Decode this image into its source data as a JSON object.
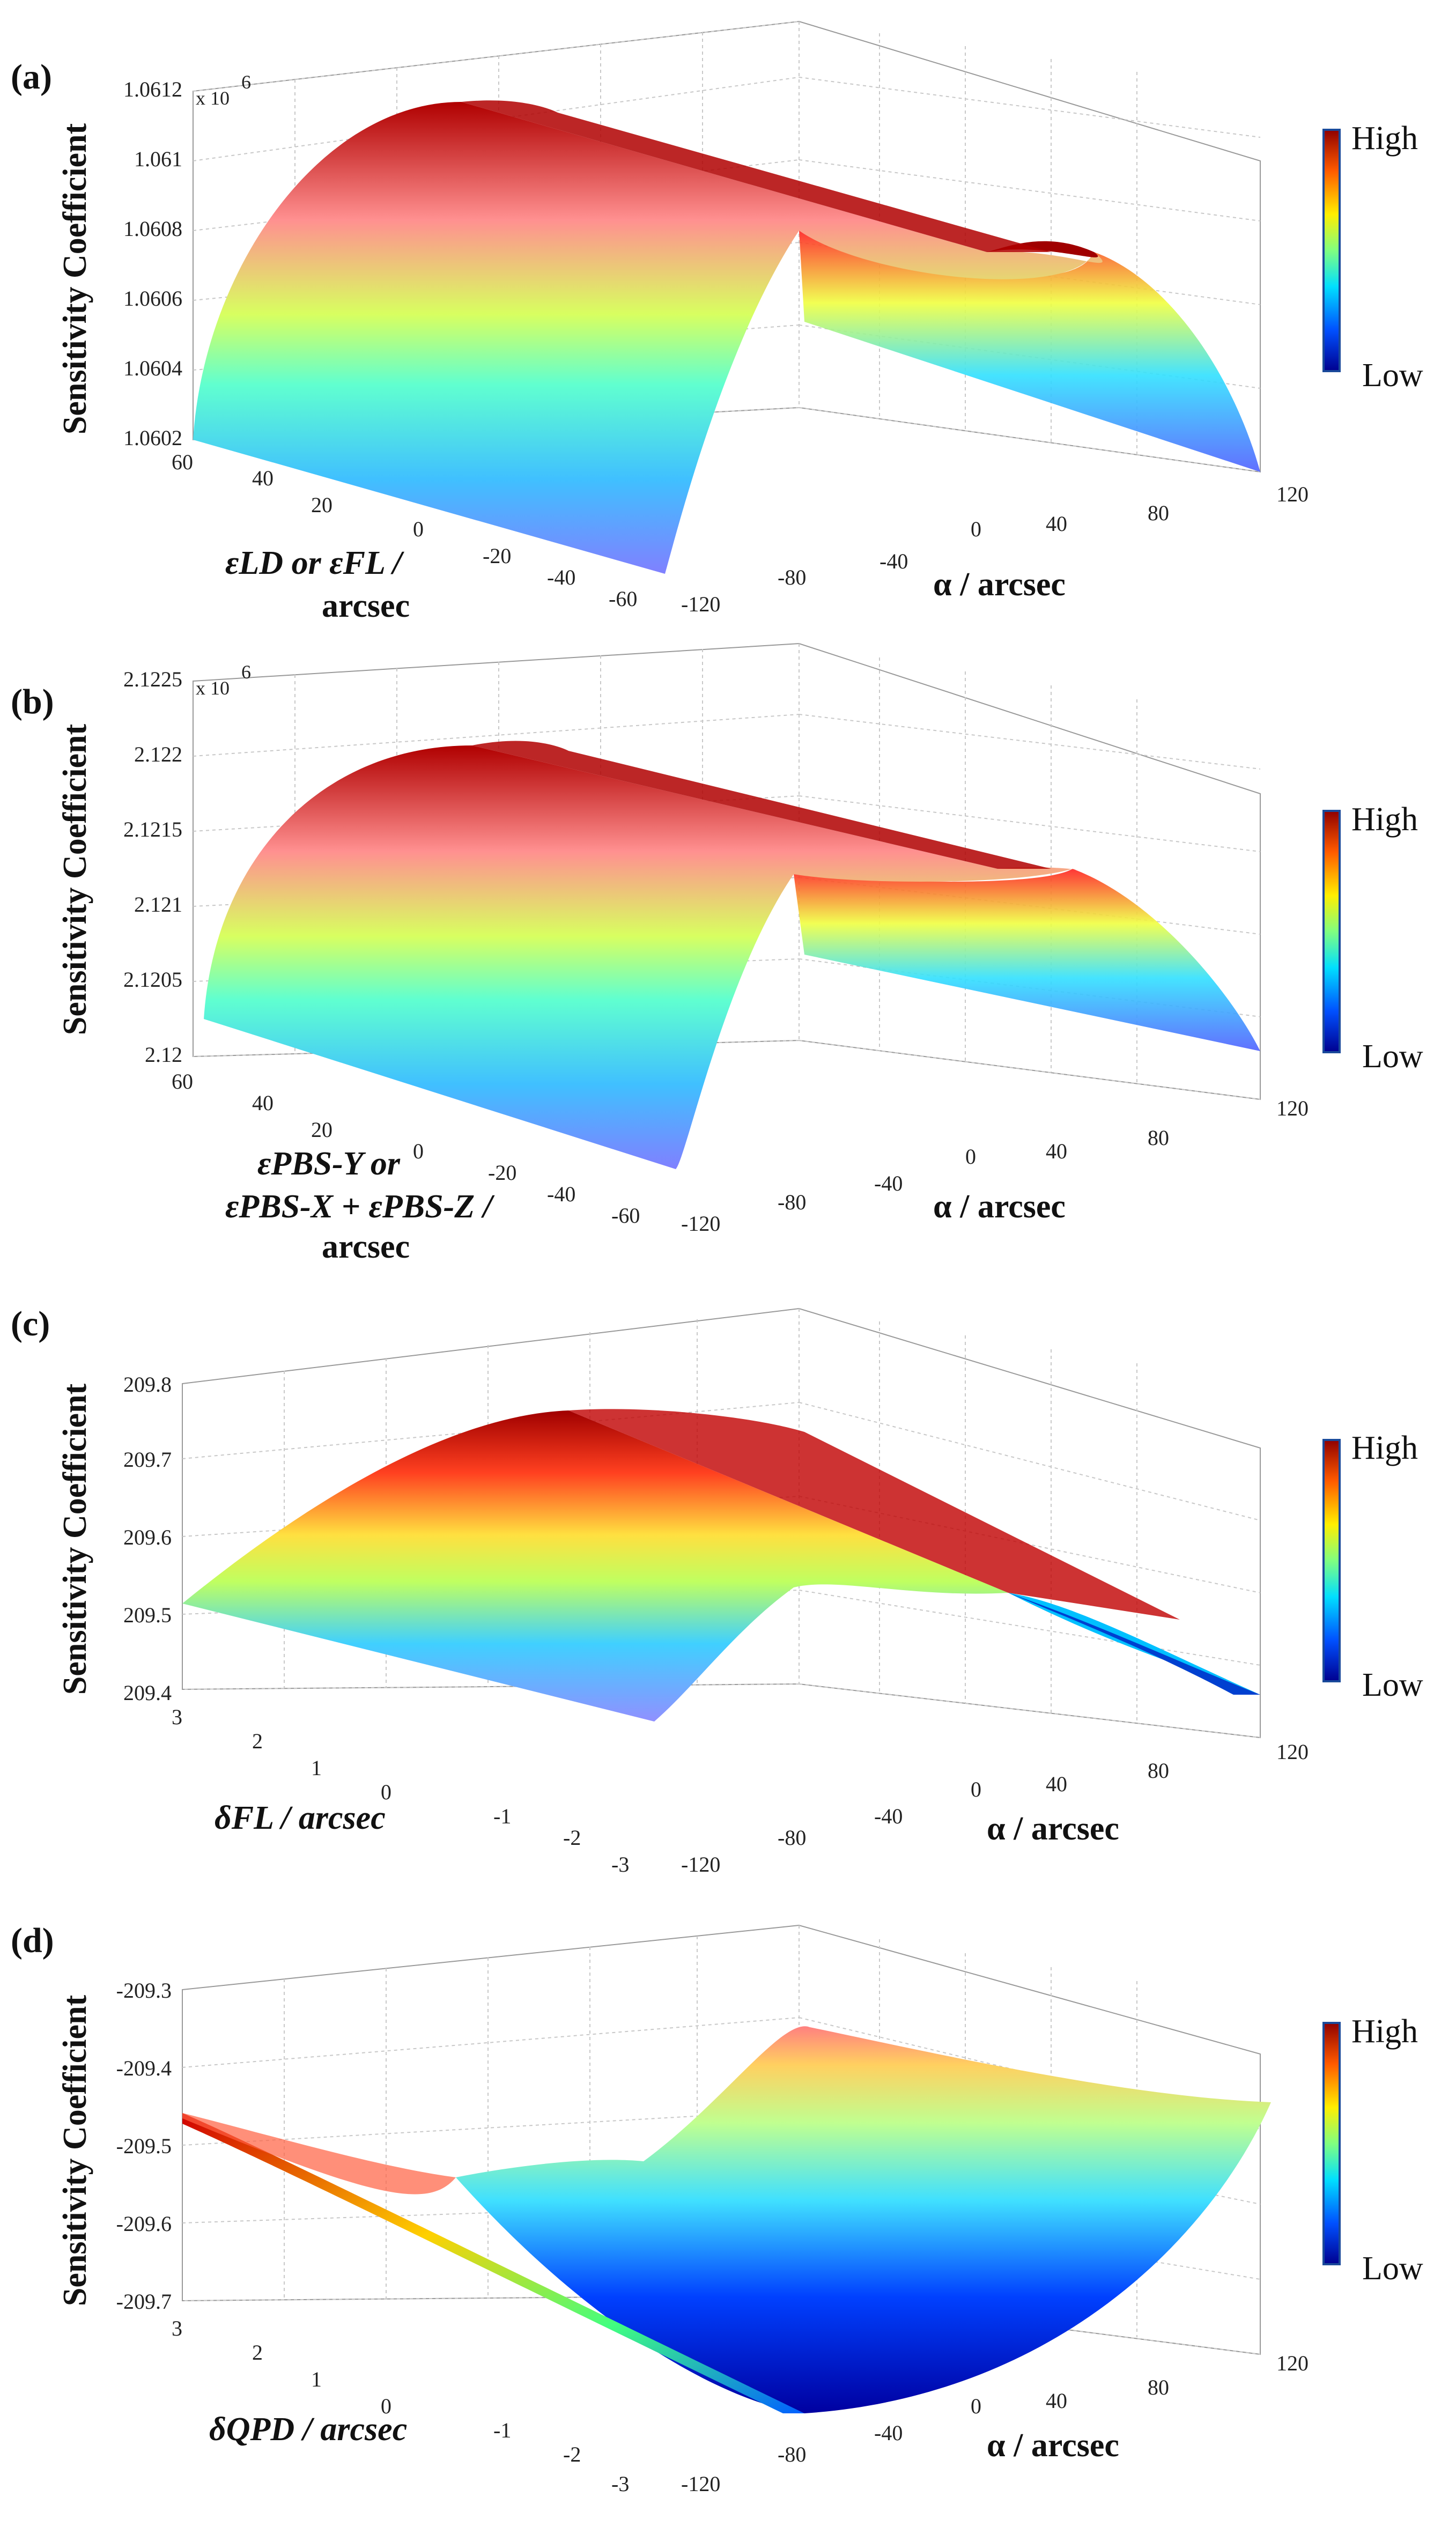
{
  "colorbar": {
    "high_label": "High",
    "low_label": "Low",
    "stops": [
      "#00008f",
      "#0050ff",
      "#00dfff",
      "#80ff80",
      "#ffef00",
      "#ff5a00",
      "#8f0000"
    ]
  },
  "chart_data": [
    {
      "type": "surface",
      "panel_label": "(a)",
      "zlabel": "Sensitivity Coefficient",
      "z_multiplier": "x 10",
      "z_multiplier_exp": "6",
      "z_ticks": [
        "1.0602",
        "1.0604",
        "1.0606",
        "1.0608",
        "1.061",
        "1.0612"
      ],
      "zlim": [
        1.0602,
        1.0612
      ],
      "y_ticks": [
        "60",
        "40",
        "20",
        "0",
        "-20",
        "-40",
        "-60"
      ],
      "ylabel_lines": [
        "εLD or εFL /",
        "arcsec"
      ],
      "x_ticks": [
        "-120",
        "-80",
        "-40",
        "0",
        "40",
        "80",
        "120"
      ],
      "xlabel": "α / arcsec",
      "shape": "concave-down in α",
      "peak_at_alpha": 0
    },
    {
      "type": "surface",
      "panel_label": "(b)",
      "zlabel": "Sensitivity Coefficient",
      "z_multiplier": "x 10",
      "z_multiplier_exp": "6",
      "z_ticks": [
        "2.12",
        "2.1205",
        "2.121",
        "2.1215",
        "2.122",
        "2.1225"
      ],
      "zlim": [
        2.12,
        2.1225
      ],
      "y_ticks": [
        "60",
        "40",
        "20",
        "0",
        "-20",
        "-40",
        "-60"
      ],
      "ylabel_lines": [
        "εPBS-Y or",
        "εPBS-X + εPBS-Z /",
        "arcsec"
      ],
      "x_ticks": [
        "-120",
        "-80",
        "-40",
        "0",
        "40",
        "80",
        "120"
      ],
      "xlabel": "α / arcsec",
      "shape": "concave-down in α",
      "peak_at_alpha": 0
    },
    {
      "type": "surface",
      "panel_label": "(c)",
      "zlabel": "Sensitivity Coefficient",
      "z_ticks": [
        "209.4",
        "209.5",
        "209.6",
        "209.7",
        "209.8"
      ],
      "zlim": [
        209.4,
        209.8
      ],
      "y_ticks": [
        "3",
        "2",
        "1",
        "0",
        "-1",
        "-2",
        "-3"
      ],
      "ylabel_lines": [
        "δFL / arcsec"
      ],
      "x_ticks": [
        "-120",
        "-80",
        "-40",
        "0",
        "40",
        "80",
        "120"
      ],
      "xlabel": "α / arcsec",
      "shape": "concave-down in α",
      "peak_at_alpha": 0
    },
    {
      "type": "surface",
      "panel_label": "(d)",
      "zlabel": "Sensitivity Coefficient",
      "z_ticks": [
        "-209.7",
        "-209.6",
        "-209.5",
        "-209.4",
        "-209.3"
      ],
      "zlim": [
        -209.7,
        -209.3
      ],
      "y_ticks": [
        "3",
        "2",
        "1",
        "0",
        "-1",
        "-2",
        "-3"
      ],
      "ylabel_lines": [
        "δQPD / arcsec"
      ],
      "x_ticks": [
        "-120",
        "-80",
        "-40",
        "0",
        "40",
        "80",
        "120"
      ],
      "xlabel": "α / arcsec",
      "shape": "concave-up in α",
      "min_at_alpha": 0
    }
  ]
}
